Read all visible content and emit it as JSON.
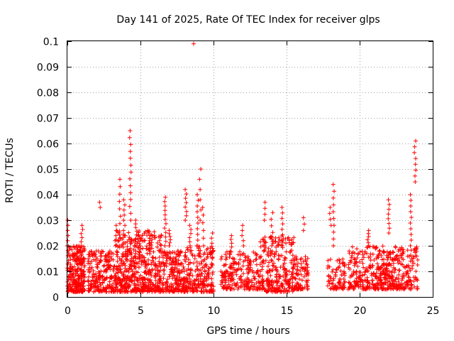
{
  "chart_data": {
    "type": "scatter",
    "title": "Day 141 of 2025, Rate Of TEC Index for receiver glps",
    "xlabel": "GPS time / hours",
    "ylabel": "ROTI / TECUs",
    "xlim": [
      0,
      25
    ],
    "ylim": [
      0,
      0.1
    ],
    "grid": true,
    "marker": "+",
    "color": "#ff0000",
    "x_ticks": [
      0,
      5,
      10,
      15,
      20,
      25
    ],
    "x_tick_labels": [
      "0",
      "5",
      "10",
      "15",
      "20",
      "25"
    ],
    "y_ticks": [
      0,
      0.01,
      0.02,
      0.03,
      0.04,
      0.05,
      0.06,
      0.07,
      0.08,
      0.09,
      0.1
    ],
    "y_tick_labels": [
      "0",
      "0.01",
      "0.02",
      "0.03",
      "0.04",
      "0.05",
      "0.06",
      "0.07",
      "0.08",
      "0.09",
      "0.1"
    ],
    "clusters": [
      {
        "x": [
          0.0,
          1.2
        ],
        "y": [
          0.002,
          0.02
        ],
        "n": 260
      },
      {
        "x": [
          1.4,
          3.3
        ],
        "y": [
          0.002,
          0.018
        ],
        "n": 220
      },
      {
        "x": [
          3.3,
          6.5
        ],
        "y": [
          0.002,
          0.026
        ],
        "n": 520
      },
      {
        "x": [
          6.5,
          8.2
        ],
        "y": [
          0.002,
          0.018
        ],
        "n": 220
      },
      {
        "x": [
          8.2,
          10.0
        ],
        "y": [
          0.002,
          0.02
        ],
        "n": 200
      },
      {
        "x": [
          10.5,
          13.2
        ],
        "y": [
          0.003,
          0.018
        ],
        "n": 230
      },
      {
        "x": [
          13.2,
          15.5
        ],
        "y": [
          0.002,
          0.024
        ],
        "n": 260
      },
      {
        "x": [
          15.5,
          16.5
        ],
        "y": [
          0.003,
          0.016
        ],
        "n": 90
      },
      {
        "x": [
          17.8,
          19.0
        ],
        "y": [
          0.003,
          0.016
        ],
        "n": 80
      },
      {
        "x": [
          19.2,
          21.0
        ],
        "y": [
          0.003,
          0.02
        ],
        "n": 160
      },
      {
        "x": [
          21.0,
          24.0
        ],
        "y": [
          0.003,
          0.02
        ],
        "n": 330
      }
    ],
    "spikes": [
      {
        "x": 0.0,
        "y": [
          0.02,
          0.03
        ],
        "n": 6
      },
      {
        "x": 1.0,
        "y": [
          0.02,
          0.028
        ],
        "n": 6
      },
      {
        "x": 2.2,
        "y": [
          0.035,
          0.037
        ],
        "n": 2
      },
      {
        "x": 3.3,
        "y": [
          0.02,
          0.028
        ],
        "n": 5
      },
      {
        "x": 3.6,
        "y": [
          0.02,
          0.046
        ],
        "n": 10
      },
      {
        "x": 3.9,
        "y": [
          0.024,
          0.038
        ],
        "n": 8
      },
      {
        "x": 4.3,
        "y": [
          0.03,
          0.065
        ],
        "n": 14
      },
      {
        "x": 4.7,
        "y": [
          0.02,
          0.03
        ],
        "n": 8
      },
      {
        "x": 5.6,
        "y": [
          0.02,
          0.025
        ],
        "n": 6
      },
      {
        "x": 6.7,
        "y": [
          0.02,
          0.039
        ],
        "n": 12
      },
      {
        "x": 7.0,
        "y": [
          0.02,
          0.026
        ],
        "n": 6
      },
      {
        "x": 8.1,
        "y": [
          0.03,
          0.042
        ],
        "n": 8
      },
      {
        "x": 8.4,
        "y": [
          0.02,
          0.028
        ],
        "n": 6
      },
      {
        "x": 8.6,
        "y": [
          0.099,
          0.099
        ],
        "n": 1
      },
      {
        "x": 8.9,
        "y": [
          0.02,
          0.04
        ],
        "n": 10
      },
      {
        "x": 9.1,
        "y": [
          0.03,
          0.05
        ],
        "n": 6
      },
      {
        "x": 9.3,
        "y": [
          0.02,
          0.035
        ],
        "n": 6
      },
      {
        "x": 9.9,
        "y": [
          0.015,
          0.025
        ],
        "n": 6
      },
      {
        "x": 11.2,
        "y": [
          0.018,
          0.024
        ],
        "n": 5
      },
      {
        "x": 12.0,
        "y": [
          0.02,
          0.028
        ],
        "n": 5
      },
      {
        "x": 13.5,
        "y": [
          0.03,
          0.037
        ],
        "n": 4
      },
      {
        "x": 14.0,
        "y": [
          0.02,
          0.033
        ],
        "n": 6
      },
      {
        "x": 14.7,
        "y": [
          0.02,
          0.035
        ],
        "n": 8
      },
      {
        "x": 16.2,
        "y": [
          0.026,
          0.031
        ],
        "n": 3
      },
      {
        "x": 18.0,
        "y": [
          0.028,
          0.035
        ],
        "n": 4
      },
      {
        "x": 18.2,
        "y": [
          0.02,
          0.044
        ],
        "n": 10
      },
      {
        "x": 20.6,
        "y": [
          0.02,
          0.026
        ],
        "n": 6
      },
      {
        "x": 22.0,
        "y": [
          0.025,
          0.038
        ],
        "n": 8
      },
      {
        "x": 23.5,
        "y": [
          0.02,
          0.04
        ],
        "n": 10
      },
      {
        "x": 23.8,
        "y": [
          0.045,
          0.061
        ],
        "n": 8
      }
    ]
  }
}
